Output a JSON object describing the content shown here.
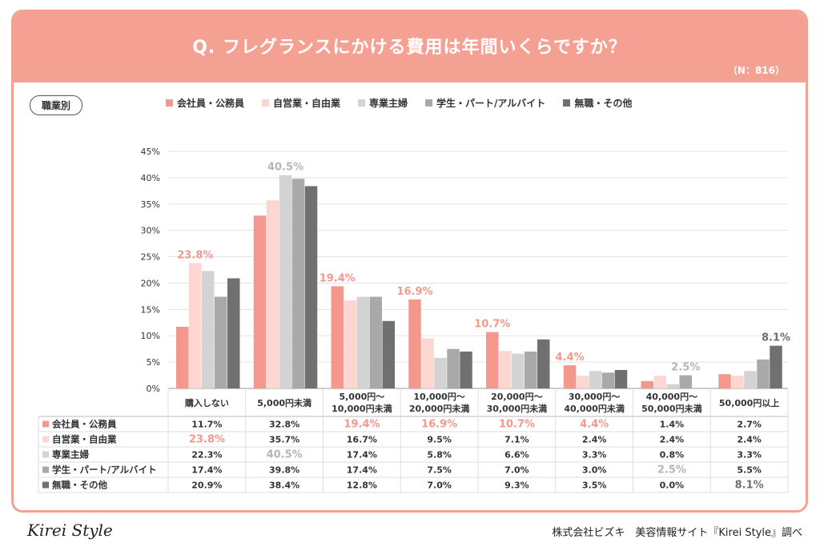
{
  "header": {
    "title": "Q. フレグランスにかける費用は年間いくらですか？",
    "sample_size": "（N：816）"
  },
  "segment_label": "職業別",
  "footer": {
    "brand": "Kirei Style",
    "credit": "株式会社ビズキ　美容情報サイト『Kirei Style』調べ"
  },
  "chart_data": {
    "type": "bar",
    "title": "Q. フレグランスにかける費用は年間いくらですか？",
    "ylim": [
      0,
      45
    ],
    "yticks": [
      "0%",
      "5%",
      "10%",
      "15%",
      "20%",
      "25%",
      "30%",
      "35%",
      "40%",
      "45%"
    ],
    "ytick_values": [
      0,
      5,
      10,
      15,
      20,
      25,
      30,
      35,
      40,
      45
    ],
    "categories": [
      [
        "購入しない"
      ],
      [
        "5,000円未満"
      ],
      [
        "5,000円～",
        "10,000円未満"
      ],
      [
        "10,000円～",
        "20,000円未満"
      ],
      [
        "20,000円～",
        "30,000円未満"
      ],
      [
        "30,000円～",
        "40,000円未満"
      ],
      [
        "40,000円～",
        "50,000円未満"
      ],
      [
        "50,000円以上"
      ]
    ],
    "series": [
      {
        "name": "会社員・公務員",
        "color": "#f4978c",
        "values": [
          11.7,
          32.8,
          19.4,
          16.9,
          10.7,
          4.4,
          1.4,
          2.7
        ],
        "labels": [
          "11.7%",
          "32.8%",
          "19.4%",
          "16.9%",
          "10.7%",
          "4.4%",
          "1.4%",
          "2.7%"
        ]
      },
      {
        "name": "自営業・自由業",
        "color": "#fdd5d1",
        "values": [
          23.8,
          35.7,
          16.7,
          9.5,
          7.1,
          2.4,
          2.4,
          2.4
        ],
        "labels": [
          "23.8%",
          "35.7%",
          "16.7%",
          "9.5%",
          "7.1%",
          "2.4%",
          "2.4%",
          "2.4%"
        ]
      },
      {
        "name": "専業主婦",
        "color": "#d3d3d3",
        "values": [
          22.3,
          40.5,
          17.4,
          5.8,
          6.6,
          3.3,
          0.8,
          3.3
        ],
        "labels": [
          "22.3%",
          "40.5%",
          "17.4%",
          "5.8%",
          "6.6%",
          "3.3%",
          "0.8%",
          "3.3%"
        ]
      },
      {
        "name": "学生・パート/アルバイト",
        "color": "#a9a9a9",
        "values": [
          17.4,
          39.8,
          17.4,
          7.5,
          7.0,
          3.0,
          2.5,
          5.5
        ],
        "labels": [
          "17.4%",
          "39.8%",
          "17.4%",
          "7.5%",
          "7.0%",
          "3.0%",
          "2.5%",
          "5.5%"
        ]
      },
      {
        "name": "無職・その他",
        "color": "#707070",
        "values": [
          20.9,
          38.4,
          12.8,
          7.0,
          9.3,
          3.5,
          0.0,
          8.1
        ],
        "labels": [
          "20.9%",
          "38.4%",
          "12.8%",
          "7.0%",
          "9.3%",
          "3.5%",
          "0.0%",
          "8.1%"
        ]
      }
    ],
    "highlights": [
      {
        "category": 0,
        "series": 1,
        "text": "23.8%",
        "color": "#f4978c"
      },
      {
        "category": 1,
        "series": 2,
        "text": "40.5%",
        "color": "#b5b5b5"
      },
      {
        "category": 2,
        "series": 0,
        "text": "19.4%",
        "color": "#f4978c"
      },
      {
        "category": 3,
        "series": 0,
        "text": "16.9%",
        "color": "#f4978c"
      },
      {
        "category": 4,
        "series": 0,
        "text": "10.7%",
        "color": "#f4978c"
      },
      {
        "category": 5,
        "series": 0,
        "text": "4.4%",
        "color": "#f4978c"
      },
      {
        "category": 6,
        "series": 3,
        "text": "2.5%",
        "color": "#b5b5b5"
      },
      {
        "category": 7,
        "series": 4,
        "text": "8.1%",
        "color": "#707070"
      }
    ]
  }
}
